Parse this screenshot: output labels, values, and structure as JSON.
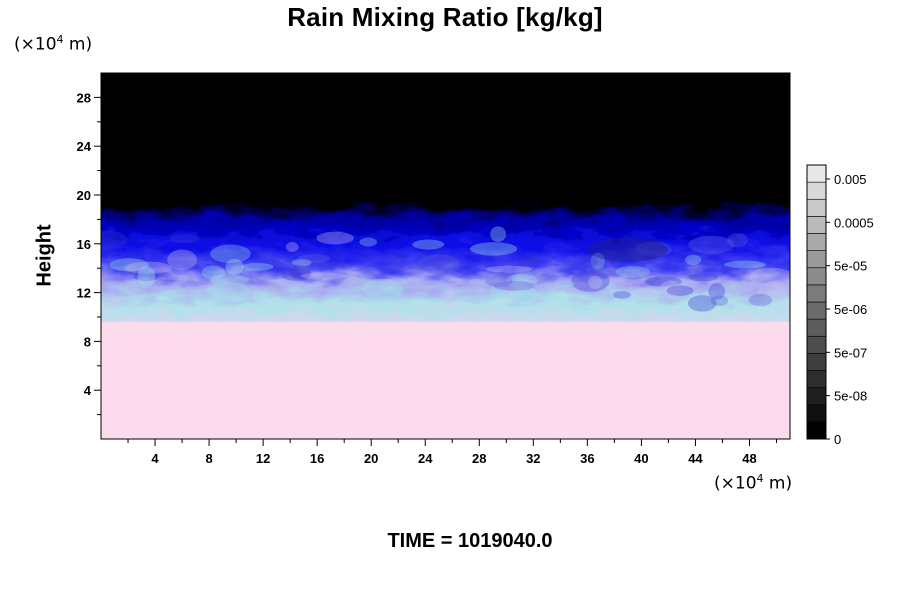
{
  "chart_data": {
    "type": "heatmap",
    "title": "Rain Mixing Ratio [kg/kg]",
    "ylabel": "Height",
    "xlabel": "",
    "y_unit": "(×10⁴ m)",
    "x_unit": "(×10⁴ m)",
    "xlim": [
      0,
      51
    ],
    "ylim": [
      0,
      30
    ],
    "x_ticks": [
      4,
      8,
      12,
      16,
      20,
      24,
      28,
      32,
      36,
      40,
      44,
      48
    ],
    "y_ticks": [
      4,
      8,
      12,
      16,
      20,
      24,
      28
    ],
    "colorbar": {
      "labels": [
        "0.005",
        "0.0005",
        "5e-05",
        "5e-06",
        "5e-07",
        "5e-08",
        "0"
      ],
      "levels": 16
    },
    "regions": [
      {
        "from": 0,
        "to": 10,
        "color": "#fcdcec"
      },
      {
        "from": 10,
        "to": 14,
        "color": "#b8d4ee"
      },
      {
        "from": 14,
        "to": 19,
        "color": "#1010e8"
      },
      {
        "from": 19,
        "to": 30,
        "color": "#000000"
      }
    ],
    "annotation": "TIME = 1019040.0"
  }
}
